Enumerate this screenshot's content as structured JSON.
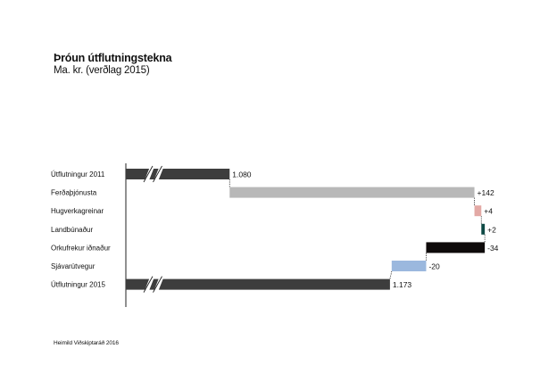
{
  "header": {
    "title": "Þróun útflutningstekna",
    "subtitle": "Ma. kr. (verðlag 2015)"
  },
  "footer": {
    "source": "Heimild Viðskiptaráð 2016"
  },
  "colors": {
    "total": "#3d3d3d",
    "tourism": "#b8b8b8",
    "creative": "#e3a9a5",
    "agriculture": "#0e4a45",
    "energy_industry": "#0e0a0a",
    "fisheries": "#9bb8de",
    "axis": "#222222"
  },
  "chart_data": {
    "type": "bar",
    "subtype": "waterfall-horizontal",
    "orientation": "horizontal",
    "axis_break": true,
    "grid": false,
    "legend": "none",
    "categories": [
      "Útflutningur 2011",
      "Ferðaþjónusta",
      "Hugverkagreinar",
      "Landbúnaður",
      "Orkufrekur iðnaður",
      "Sjávarútvegur",
      "Útflutningur 2015"
    ],
    "values": [
      1080,
      142,
      4,
      2,
      -34,
      -20,
      1173
    ],
    "value_labels": [
      "1.080",
      "+142",
      "+4",
      "+2",
      "-34",
      "-20",
      "1.173"
    ],
    "kinds": [
      "total",
      "delta",
      "delta",
      "delta",
      "delta",
      "delta",
      "total"
    ],
    "color_keys": [
      "total",
      "tourism",
      "creative",
      "agriculture",
      "energy_industry",
      "fisheries",
      "total"
    ],
    "xlim": [
      1040,
      1230
    ]
  }
}
